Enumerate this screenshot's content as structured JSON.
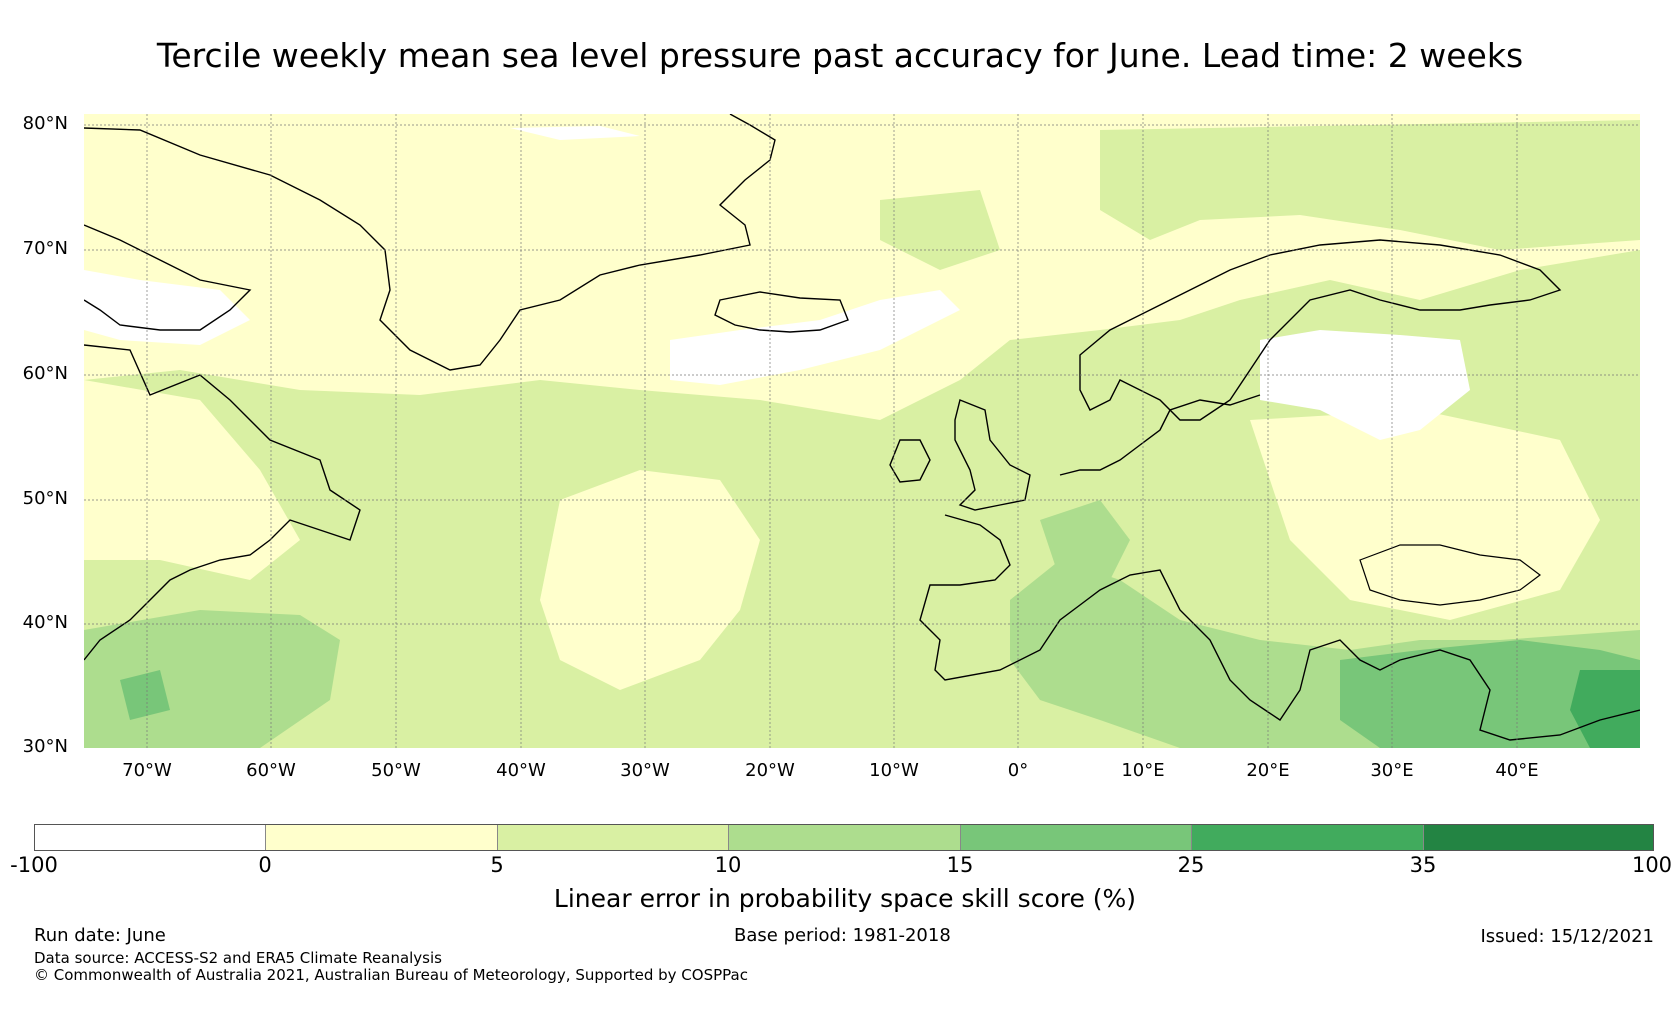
{
  "title": "Tercile weekly mean sea level pressure past accuracy for June. Lead time: 2 weeks",
  "map": {
    "lat_labels": [
      "80°N",
      "70°N",
      "60°N",
      "50°N",
      "40°N",
      "30°N"
    ],
    "lon_labels": [
      "70°W",
      "60°W",
      "50°W",
      "40°W",
      "30°W",
      "20°W",
      "10°W",
      "0°",
      "10°E",
      "20°E",
      "30°E",
      "40°E"
    ],
    "colorbar": {
      "bounds": [
        "-100",
        "0",
        "5",
        "10",
        "15",
        "25",
        "35",
        "100"
      ],
      "colors": [
        "#ffffff",
        "#ffffcc",
        "#d9f0a3",
        "#addd8e",
        "#78c679",
        "#41ab5d",
        "#238443"
      ],
      "label": "Linear error in probability space skill score (%)"
    }
  },
  "footer": {
    "run_date": "Run date: June",
    "base_period": "Base period: 1981-2018",
    "issued": "Issued: 15/12/2021",
    "data_source": "Data source: ACCESS-S2 and ERA5 Climate Reanalysis",
    "copyright": "© Commonwealth of Australia 2021, Australian Bureau of Meteorology, Supported by COSPPac"
  }
}
